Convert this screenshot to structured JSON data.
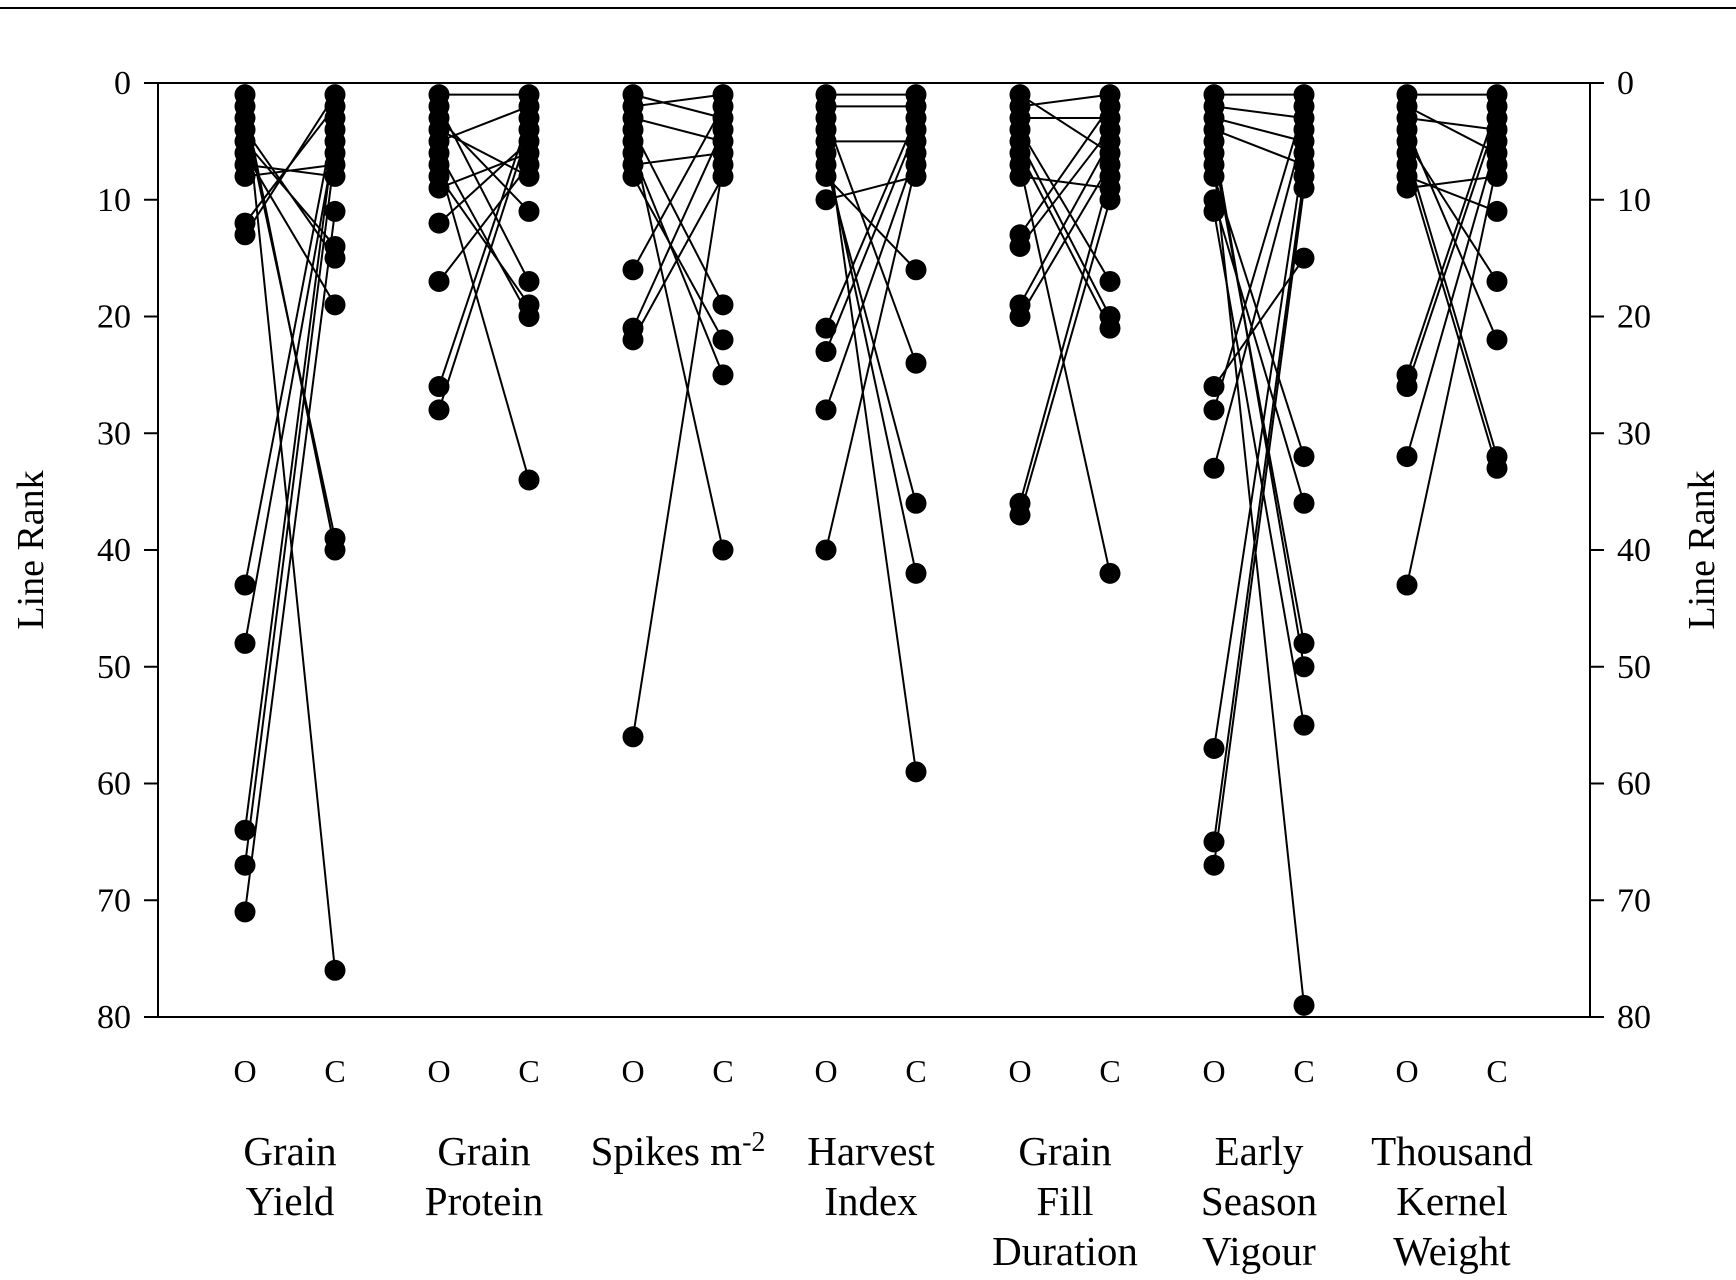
{
  "chart_data": {
    "type": "scatter",
    "ylabel_left": "Line Rank",
    "ylabel_right": "Line Rank",
    "ylim": [
      0,
      80
    ],
    "y_inverted": true,
    "yticks": [
      "0",
      "10",
      "20",
      "30",
      "40",
      "50",
      "60",
      "70",
      "80"
    ],
    "environment_labels": [
      "O",
      "C"
    ],
    "color": "#000000",
    "groups": [
      {
        "name_lines": [
          "Grain",
          "Yield"
        ],
        "O": [
          1,
          2,
          3,
          4,
          5,
          6,
          7,
          8,
          12,
          13,
          43,
          48,
          64,
          67,
          71
        ],
        "C": [
          1,
          2,
          3,
          4,
          5,
          6,
          7,
          8,
          11,
          14,
          15,
          19,
          39,
          40,
          76
        ],
        "links": [
          [
            1,
            76
          ],
          [
            2,
            40
          ],
          [
            3,
            39
          ],
          [
            4,
            15
          ],
          [
            5,
            14
          ],
          [
            6,
            19
          ],
          [
            7,
            8
          ],
          [
            8,
            7
          ],
          [
            12,
            2
          ],
          [
            13,
            1
          ],
          [
            43,
            3
          ],
          [
            48,
            5
          ],
          [
            64,
            4
          ],
          [
            67,
            6
          ],
          [
            71,
            11
          ]
        ]
      },
      {
        "name_lines": [
          "Grain",
          "Protein"
        ],
        "O": [
          1,
          2,
          3,
          4,
          5,
          6,
          7,
          8,
          9,
          12,
          17,
          26,
          28
        ],
        "C": [
          1,
          2,
          3,
          4,
          5,
          6,
          7,
          8,
          11,
          17,
          19,
          20,
          34
        ],
        "links": [
          [
            1,
            1
          ],
          [
            2,
            17
          ],
          [
            3,
            11
          ],
          [
            4,
            8
          ],
          [
            5,
            2
          ],
          [
            6,
            20
          ],
          [
            7,
            34
          ],
          [
            8,
            19
          ],
          [
            9,
            6
          ],
          [
            12,
            5
          ],
          [
            17,
            7
          ],
          [
            26,
            3
          ],
          [
            28,
            4
          ]
        ]
      },
      {
        "name_lines": [
          "Spikes m<sup>-2</sup>"
        ],
        "O": [
          1,
          2,
          3,
          4,
          5,
          6,
          7,
          8,
          16,
          21,
          22,
          56
        ],
        "C": [
          1,
          2,
          3,
          4,
          5,
          6,
          7,
          8,
          19,
          22,
          25,
          40
        ],
        "links": [
          [
            1,
            3
          ],
          [
            2,
            1
          ],
          [
            3,
            5
          ],
          [
            4,
            19
          ],
          [
            5,
            40
          ],
          [
            6,
            25
          ],
          [
            7,
            6
          ],
          [
            8,
            22
          ],
          [
            16,
            2
          ],
          [
            21,
            4
          ],
          [
            22,
            8
          ],
          [
            56,
            7
          ]
        ]
      },
      {
        "name_lines": [
          "Harvest",
          "Index"
        ],
        "O": [
          1,
          2,
          3,
          4,
          5,
          6,
          7,
          8,
          10,
          21,
          23,
          28,
          40
        ],
        "C": [
          1,
          2,
          3,
          4,
          5,
          6,
          7,
          8,
          16,
          24,
          36,
          42,
          59
        ],
        "links": [
          [
            1,
            1
          ],
          [
            2,
            2
          ],
          [
            3,
            24
          ],
          [
            4,
            59
          ],
          [
            5,
            5
          ],
          [
            6,
            42
          ],
          [
            7,
            36
          ],
          [
            8,
            16
          ],
          [
            10,
            8
          ],
          [
            21,
            3
          ],
          [
            23,
            4
          ],
          [
            28,
            6
          ],
          [
            40,
            7
          ]
        ]
      },
      {
        "name_lines": [
          "Grain",
          "Fill",
          "Duration"
        ],
        "O": [
          1,
          2,
          3,
          4,
          5,
          6,
          7,
          8,
          13,
          14,
          19,
          20,
          36,
          37
        ],
        "C": [
          1,
          2,
          3,
          4,
          5,
          6,
          7,
          8,
          9,
          10,
          17,
          20,
          21,
          42
        ],
        "links": [
          [
            1,
            6
          ],
          [
            2,
            1
          ],
          [
            3,
            3
          ],
          [
            4,
            17
          ],
          [
            5,
            20
          ],
          [
            6,
            21
          ],
          [
            7,
            42
          ],
          [
            8,
            9
          ],
          [
            13,
            2
          ],
          [
            14,
            4
          ],
          [
            19,
            5
          ],
          [
            20,
            7
          ],
          [
            36,
            8
          ],
          [
            37,
            10
          ]
        ]
      },
      {
        "name_lines": [
          "Early",
          "Season",
          "Vigour"
        ],
        "O": [
          1,
          2,
          3,
          4,
          5,
          6,
          7,
          8,
          10,
          11,
          26,
          28,
          33,
          57,
          65,
          67
        ],
        "C": [
          1,
          2,
          3,
          4,
          5,
          6,
          7,
          8,
          9,
          15,
          32,
          36,
          48,
          50,
          55,
          79
        ],
        "links": [
          [
            1,
            1
          ],
          [
            2,
            3
          ],
          [
            3,
            5
          ],
          [
            4,
            7
          ],
          [
            5,
            50
          ],
          [
            6,
            48
          ],
          [
            7,
            79
          ],
          [
            8,
            32
          ],
          [
            10,
            36
          ],
          [
            11,
            55
          ],
          [
            26,
            15
          ],
          [
            28,
            2
          ],
          [
            33,
            4
          ],
          [
            57,
            6
          ],
          [
            65,
            8
          ],
          [
            67,
            9
          ]
        ]
      },
      {
        "name_lines": [
          "Thousand",
          "Kernel",
          "Weight"
        ],
        "O": [
          1,
          2,
          3,
          4,
          5,
          6,
          7,
          8,
          9,
          25,
          26,
          32,
          43
        ],
        "C": [
          1,
          2,
          3,
          4,
          5,
          6,
          7,
          8,
          11,
          17,
          22,
          32,
          33
        ],
        "links": [
          [
            1,
            1
          ],
          [
            2,
            6
          ],
          [
            3,
            4
          ],
          [
            4,
            22
          ],
          [
            5,
            17
          ],
          [
            6,
            32
          ],
          [
            7,
            33
          ],
          [
            8,
            11
          ],
          [
            9,
            8
          ],
          [
            25,
            2
          ],
          [
            26,
            3
          ],
          [
            32,
            5
          ],
          [
            43,
            7
          ]
        ]
      }
    ]
  }
}
